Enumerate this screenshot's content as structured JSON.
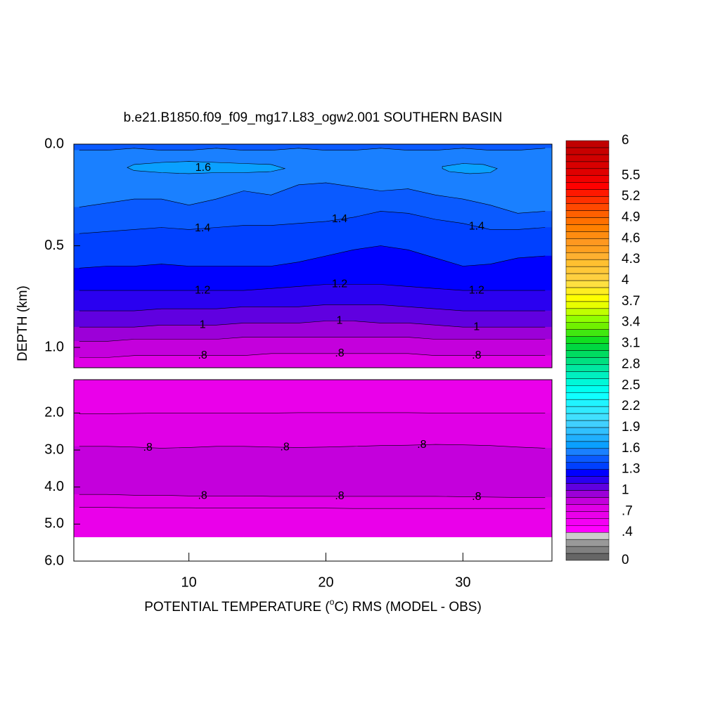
{
  "chart_data": {
    "type": "contour",
    "title": "b.e21.B1850.f09_f09_mg17.L83_ogw2.001 SOUTHERN BASIN",
    "xlabel": [
      "POTENTIAL TEMPERATURE (",
      "o",
      "C) RMS (MODEL - OBS)"
    ],
    "ylabel": "DEPTH (km)",
    "x": [
      2,
      4,
      6,
      8,
      10,
      12,
      14,
      16,
      18,
      20,
      22,
      24,
      26,
      28,
      30,
      32,
      34,
      36
    ],
    "xlim": [
      1.6,
      36.5
    ],
    "xticks": [
      10,
      20,
      30
    ],
    "panels": [
      {
        "ylim": [
          0,
          1.1
        ],
        "yticks": [
          {
            "value": 0,
            "label": "0.0"
          },
          {
            "value": 0.5,
            "label": "0.5"
          },
          {
            "value": 1,
            "label": "1.0"
          }
        ],
        "fills": [
          1.4,
          1.5,
          1.4,
          1.3,
          1.2,
          1.1,
          1.0,
          0.9,
          0.8,
          0.7
        ],
        "lines": [
          {
            "level": 1.5,
            "depth": [
              0.03,
              0.03,
              0.02,
              0.03,
              0.03,
              0.02,
              0.03,
              0.03,
              0.02,
              0.03,
              0.03,
              0.02,
              0.03,
              0.03,
              0.02,
              0.03,
              0.03,
              0.02
            ]
          },
          {
            "level": 1.5,
            "depth": [
              0.31,
              0.29,
              0.27,
              0.27,
              0.3,
              0.27,
              0.23,
              0.25,
              0.2,
              0.19,
              0.21,
              0.23,
              0.22,
              0.25,
              0.27,
              0.3,
              0.34,
              0.33
            ]
          },
          {
            "level": 1.4,
            "label": "1.4",
            "depth": [
              0.44,
              0.43,
              0.42,
              0.41,
              0.42,
              0.41,
              0.4,
              0.4,
              0.39,
              0.38,
              0.36,
              0.33,
              0.34,
              0.37,
              0.39,
              0.42,
              0.42,
              0.41
            ]
          },
          {
            "level": 1.3,
            "depth": [
              0.61,
              0.6,
              0.6,
              0.59,
              0.6,
              0.6,
              0.6,
              0.6,
              0.58,
              0.55,
              0.52,
              0.5,
              0.52,
              0.56,
              0.6,
              0.59,
              0.56,
              0.55
            ]
          },
          {
            "level": 1.2,
            "label": "1.2",
            "depth": [
              0.72,
              0.72,
              0.72,
              0.72,
              0.72,
              0.72,
              0.72,
              0.71,
              0.7,
              0.69,
              0.69,
              0.69,
              0.7,
              0.71,
              0.72,
              0.72,
              0.72,
              0.72
            ]
          },
          {
            "level": 1.1,
            "depth": [
              0.82,
              0.82,
              0.82,
              0.81,
              0.81,
              0.81,
              0.8,
              0.8,
              0.8,
              0.79,
              0.79,
              0.79,
              0.8,
              0.81,
              0.82,
              0.82,
              0.82,
              0.82
            ]
          },
          {
            "level": 1.0,
            "label": "1",
            "depth": [
              0.9,
              0.9,
              0.9,
              0.89,
              0.89,
              0.89,
              0.88,
              0.88,
              0.88,
              0.87,
              0.87,
              0.88,
              0.88,
              0.89,
              0.9,
              0.9,
              0.9,
              0.9
            ]
          },
          {
            "level": 0.9,
            "depth": [
              0.97,
              0.97,
              0.96,
              0.96,
              0.96,
              0.96,
              0.95,
              0.95,
              0.95,
              0.95,
              0.95,
              0.95,
              0.95,
              0.96,
              0.96,
              0.96,
              0.96,
              0.96
            ]
          },
          {
            "level": 0.8,
            "label": ".8",
            "depth": [
              1.05,
              1.05,
              1.04,
              1.04,
              1.04,
              1.04,
              1.04,
              1.03,
              1.03,
              1.03,
              1.03,
              1.03,
              1.03,
              1.04,
              1.04,
              1.04,
              1.04,
              1.04
            ]
          }
        ],
        "closed": [
          {
            "level": 1.6,
            "label": "1.6",
            "x": [
              6,
              8,
              10,
              12,
              14,
              16,
              17,
              16,
              14,
              12,
              10,
              8,
              6,
              5.5
            ],
            "depth": [
              0.1,
              0.09,
              0.085,
              0.09,
              0.095,
              0.1,
              0.12,
              0.135,
              0.14,
              0.14,
              0.145,
              0.14,
              0.13,
              0.115
            ]
          },
          {
            "level": 1.6,
            "x": [
              28.5,
              30,
              31.5,
              32.5,
              32,
              30.5,
              29,
              28.5
            ],
            "depth": [
              0.11,
              0.095,
              0.1,
              0.12,
              0.14,
              0.145,
              0.135,
              0.12
            ]
          }
        ]
      },
      {
        "ylim": [
          1.1,
          6
        ],
        "yticks": [
          {
            "value": 2,
            "label": "2.0"
          },
          {
            "value": 3,
            "label": "3.0"
          },
          {
            "value": 4,
            "label": "4.0"
          },
          {
            "value": 5,
            "label": "5.0"
          },
          {
            "value": 6,
            "label": "6.0"
          }
        ],
        "fills": [
          0.6,
          0.7,
          0.8,
          0.7,
          0.6
        ],
        "floor": 5.35,
        "lines": [
          {
            "level": 0.7,
            "depth": [
              2.02,
              2.02,
              2.01,
              2.0,
              2.0,
              2.0,
              2.0,
              2.0,
              1.99,
              1.99,
              1.99,
              1.99,
              1.99,
              2.0,
              2.0,
              2.0,
              2.0,
              2.0
            ]
          },
          {
            "level": 0.8,
            "label": ".8",
            "depth": [
              2.9,
              2.9,
              2.92,
              2.95,
              2.93,
              2.9,
              2.9,
              2.92,
              2.93,
              2.92,
              2.9,
              2.88,
              2.87,
              2.85,
              2.86,
              2.88,
              2.92,
              2.95
            ]
          },
          {
            "level": 0.8,
            "label": ".8",
            "depth": [
              4.2,
              4.2,
              4.22,
              4.22,
              4.24,
              4.24,
              4.24,
              4.25,
              4.25,
              4.25,
              4.25,
              4.25,
              4.25,
              4.25,
              4.26,
              4.27,
              4.28,
              4.28
            ]
          },
          {
            "level": 0.7,
            "depth": [
              4.55,
              4.55,
              4.56,
              4.56,
              4.56,
              4.57,
              4.57,
              4.57,
              4.57,
              4.57,
              4.58,
              4.58,
              4.58,
              4.58,
              4.58,
              4.58,
              4.58,
              4.58
            ]
          }
        ]
      }
    ],
    "colorbar": {
      "lim": [
        0,
        6
      ],
      "colors": [
        "#666666",
        "#808080",
        "#999999",
        "#cccccc",
        "#ff00ff",
        "#f400f4",
        "#ea00ea",
        "#e000e6",
        "#c400dc",
        "#9c00d8",
        "#6000e0",
        "#2a00f0",
        "#0000ff",
        "#0040ff",
        "#0a5aff",
        "#1a80ff",
        "#0aa0ff",
        "#20b0ff",
        "#30c0ff",
        "#40d0ff",
        "#40e0ff",
        "#30eaff",
        "#20f4ff",
        "#10ffff",
        "#00fff0",
        "#00f8d8",
        "#00f0c0",
        "#00e8a0",
        "#00e080",
        "#00dc60",
        "#00d840",
        "#10e020",
        "#40e810",
        "#70f000",
        "#90ff00",
        "#c0ff00",
        "#e8ff00",
        "#ffff00",
        "#ffee20",
        "#ffe040",
        "#ffd040",
        "#ffc838",
        "#ffc030",
        "#ffb030",
        "#ffa020",
        "#ff9820",
        "#ff8c10",
        "#ff8000",
        "#ff7000",
        "#ff6000",
        "#ff4800",
        "#ff3000",
        "#ff1800",
        "#ff0000",
        "#f00000",
        "#e00000",
        "#d80000",
        "#d00000",
        "#c80000",
        "#c00000"
      ],
      "ticks": [
        0,
        {
          "value": 0.4,
          "label": ".4"
        },
        {
          "value": 0.7,
          "label": ".7"
        },
        1,
        1.3,
        1.6,
        1.9,
        2.2,
        2.5,
        2.8,
        3.1,
        3.4,
        3.7,
        4,
        4.3,
        4.6,
        4.9,
        5.2,
        5.5,
        6
      ]
    }
  }
}
